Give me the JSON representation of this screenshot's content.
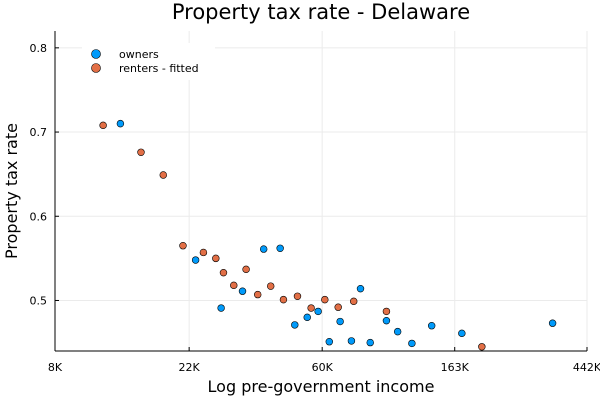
{
  "chart_data": {
    "type": "scatter",
    "title": "Property tax rate - Delaware",
    "xlabel": "Log pre-government income",
    "ylabel": "Property tax rate",
    "x_scale": "log",
    "xlim": [
      8000,
      442000
    ],
    "ylim": [
      0.44,
      0.82
    ],
    "x_ticks": [
      {
        "value": 8000,
        "label": "8K"
      },
      {
        "value": 22000,
        "label": "22K"
      },
      {
        "value": 60000,
        "label": "60K"
      },
      {
        "value": 163000,
        "label": "163K"
      },
      {
        "value": 442000,
        "label": "442K"
      }
    ],
    "y_ticks": [
      {
        "value": 0.5,
        "label": "0.5"
      },
      {
        "value": 0.6,
        "label": "0.6"
      },
      {
        "value": 0.7,
        "label": "0.7"
      },
      {
        "value": 0.8,
        "label": "0.8"
      }
    ],
    "grid": true,
    "legend_position": "top-left",
    "series": [
      {
        "name": "owners",
        "color": "#009AFA",
        "points": [
          {
            "x": 13100,
            "y": 0.71
          },
          {
            "x": 23100,
            "y": 0.548
          },
          {
            "x": 28000,
            "y": 0.491
          },
          {
            "x": 32900,
            "y": 0.511
          },
          {
            "x": 38600,
            "y": 0.561
          },
          {
            "x": 43700,
            "y": 0.562
          },
          {
            "x": 48800,
            "y": 0.471
          },
          {
            "x": 53600,
            "y": 0.48
          },
          {
            "x": 58200,
            "y": 0.487
          },
          {
            "x": 63300,
            "y": 0.451
          },
          {
            "x": 68700,
            "y": 0.475
          },
          {
            "x": 74800,
            "y": 0.452
          },
          {
            "x": 80100,
            "y": 0.514
          },
          {
            "x": 86200,
            "y": 0.45
          },
          {
            "x": 97400,
            "y": 0.476
          },
          {
            "x": 106000,
            "y": 0.463
          },
          {
            "x": 118000,
            "y": 0.449
          },
          {
            "x": 137000,
            "y": 0.47
          },
          {
            "x": 172000,
            "y": 0.461
          },
          {
            "x": 341000,
            "y": 0.473
          }
        ]
      },
      {
        "name": "renters - fitted",
        "color": "#E26F46",
        "points": [
          {
            "x": 11500,
            "y": 0.708
          },
          {
            "x": 15300,
            "y": 0.676
          },
          {
            "x": 18100,
            "y": 0.649
          },
          {
            "x": 21000,
            "y": 0.565
          },
          {
            "x": 24500,
            "y": 0.557
          },
          {
            "x": 26900,
            "y": 0.55
          },
          {
            "x": 28500,
            "y": 0.533
          },
          {
            "x": 30800,
            "y": 0.518
          },
          {
            "x": 33800,
            "y": 0.537
          },
          {
            "x": 36900,
            "y": 0.507
          },
          {
            "x": 40700,
            "y": 0.517
          },
          {
            "x": 44800,
            "y": 0.501
          },
          {
            "x": 49800,
            "y": 0.505
          },
          {
            "x": 55200,
            "y": 0.491
          },
          {
            "x": 61200,
            "y": 0.501
          },
          {
            "x": 67700,
            "y": 0.492
          },
          {
            "x": 76100,
            "y": 0.499
          },
          {
            "x": 97400,
            "y": 0.487
          },
          {
            "x": 200000,
            "y": 0.445
          }
        ]
      }
    ]
  }
}
